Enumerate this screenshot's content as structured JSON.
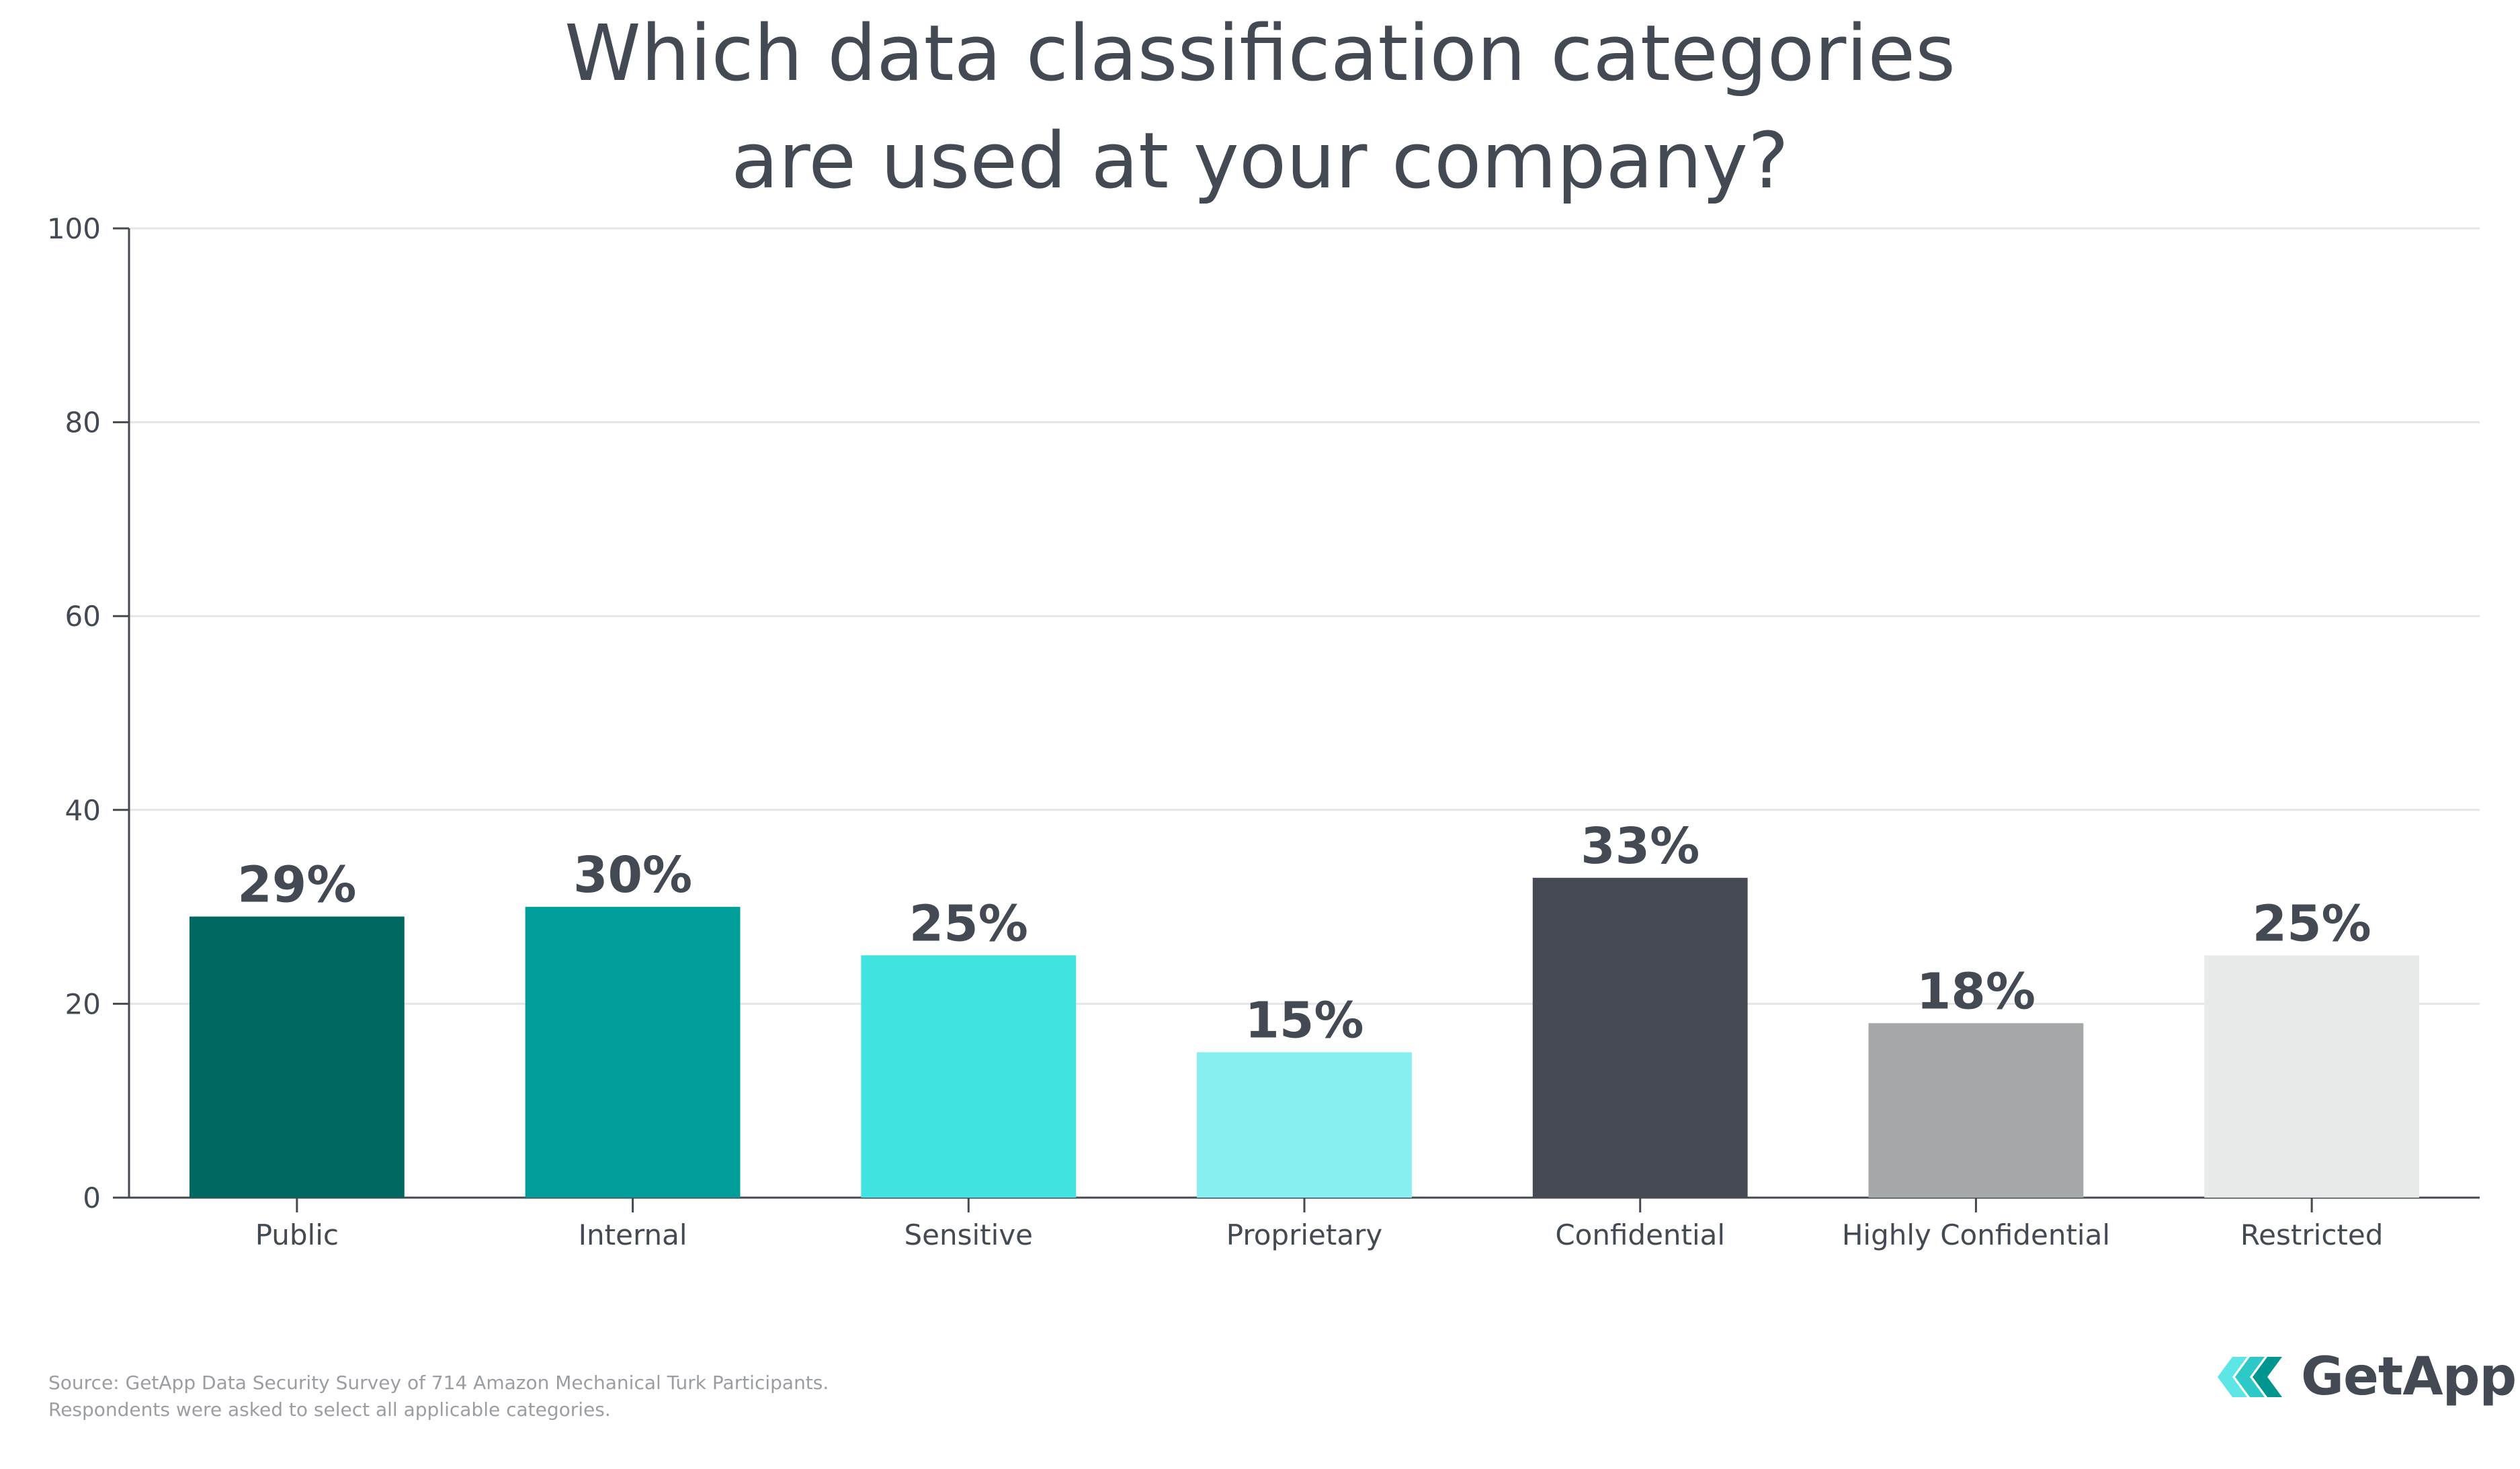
{
  "title_lines": [
    "Which data classification categories",
    "are used at your company?"
  ],
  "chart_data": {
    "type": "bar",
    "title": "Which data classification categories are used at your company?",
    "categories": [
      "Public",
      "Internal",
      "Sensitive",
      "Proprietary",
      "Confidential",
      "Highly Confidential",
      "Restricted"
    ],
    "values": [
      29,
      30,
      25,
      15,
      33,
      18,
      25
    ],
    "data_labels": [
      "29%",
      "30%",
      "25%",
      "15%",
      "33%",
      "18%",
      "25%"
    ],
    "colors": [
      "#006861",
      "#009e9a",
      "#41e3e0",
      "#88eff0",
      "#464a52",
      "#a5a8a9",
      "#e8eaea"
    ],
    "ylim": [
      0,
      100
    ],
    "yticks": [
      0,
      20,
      40,
      60,
      80,
      100
    ],
    "xlabel": "",
    "ylabel": "",
    "grid": true,
    "legend": "none"
  },
  "footer": {
    "source_line1": "Source: GetApp Data Security Survey of 714 Amazon Mechanical Turk Participants.",
    "source_line2": "Respondents were asked to select all applicable categories."
  },
  "logo": {
    "name": "GetApp",
    "icon": "getapp-chevrons-icon",
    "colors": [
      "#5ee6e6",
      "#2cc9c6",
      "#00968f"
    ]
  }
}
